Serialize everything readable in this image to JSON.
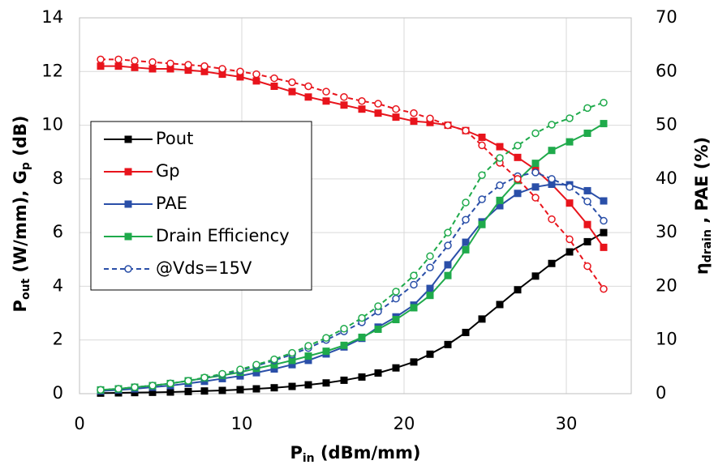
{
  "chart_data": {
    "type": "line",
    "xlabel": [
      "P",
      "in",
      " (dBm/mm)"
    ],
    "ylabel": [
      "P",
      "out",
      " (W/mm), G",
      "p",
      " (dB)"
    ],
    "y2label": [
      "η",
      "drain",
      " , PAE (%)"
    ],
    "x": [
      1.3,
      2.4,
      3.4,
      4.5,
      5.6,
      6.7,
      7.7,
      8.8,
      9.9,
      10.9,
      12.0,
      13.1,
      14.1,
      15.2,
      16.3,
      17.4,
      18.4,
      19.5,
      20.6,
      21.6,
      22.7,
      23.8,
      24.8,
      25.9,
      27.0,
      28.1,
      29.1,
      30.2,
      31.3,
      32.3
    ],
    "xlim": [
      0,
      34
    ],
    "xticks": [
      0,
      10,
      20,
      30
    ],
    "ylim": [
      0,
      14
    ],
    "yticks": [
      0,
      2,
      4,
      6,
      8,
      10,
      12,
      14
    ],
    "y2lim": [
      0,
      70
    ],
    "y2ticks": [
      0,
      10,
      20,
      30,
      40,
      50,
      60,
      70
    ],
    "grid": true,
    "series": [
      {
        "name": "Pout",
        "color": "#000000",
        "marker": "square",
        "dashed": false,
        "values": [
          0.02,
          0.03,
          0.04,
          0.05,
          0.06,
          0.08,
          0.1,
          0.12,
          0.15,
          0.18,
          0.22,
          0.27,
          0.33,
          0.4,
          0.5,
          0.62,
          0.77,
          0.96,
          1.18,
          1.47,
          1.83,
          2.28,
          2.78,
          3.32,
          3.87,
          4.38,
          4.85,
          5.28,
          5.66,
          6.0
        ]
      },
      {
        "name": "Gp",
        "color": "#e8141c",
        "marker": "square",
        "dashed": false,
        "values": [
          12.2,
          12.2,
          12.15,
          12.1,
          12.1,
          12.05,
          12.0,
          11.9,
          11.8,
          11.65,
          11.45,
          11.25,
          11.05,
          10.9,
          10.75,
          10.6,
          10.45,
          10.3,
          10.15,
          10.1,
          10.0,
          9.8,
          9.55,
          9.2,
          8.8,
          8.35,
          7.8,
          7.1,
          6.3,
          5.45
        ]
      },
      {
        "name": "PAE",
        "color": "#2a4fa8",
        "marker": "square",
        "dashed": false,
        "axis": "y2",
        "values": [
          0.5,
          0.7,
          0.9,
          1.2,
          1.5,
          1.9,
          2.3,
          2.8,
          3.3,
          3.9,
          4.6,
          5.4,
          6.2,
          7.4,
          8.7,
          10.3,
          12.4,
          14.3,
          16.5,
          19.6,
          24.0,
          28.2,
          32.0,
          35.0,
          37.3,
          38.5,
          39.0,
          38.9,
          37.8,
          35.9
        ]
      },
      {
        "name": "Drain Efficiency",
        "color": "#1faa4b",
        "marker": "square",
        "dashed": false,
        "axis": "y2",
        "values": [
          0.7,
          0.9,
          1.2,
          1.5,
          1.9,
          2.4,
          2.9,
          3.4,
          4.0,
          4.7,
          5.4,
          6.2,
          7.0,
          7.9,
          9.0,
          10.5,
          12.0,
          13.8,
          16.0,
          18.3,
          22.0,
          26.8,
          31.5,
          36.0,
          39.7,
          42.9,
          45.3,
          46.9,
          48.5,
          50.3
        ]
      },
      {
        "name": "@Vds=15V",
        "color": "#2a4fa8",
        "marker": "circle",
        "dashed": true,
        "axis": "y2",
        "values": [
          0.7,
          0.9,
          1.2,
          1.5,
          1.9,
          2.4,
          2.9,
          3.6,
          4.3,
          5.2,
          6.2,
          7.3,
          8.5,
          10.0,
          11.6,
          13.3,
          15.3,
          17.7,
          20.3,
          23.5,
          27.6,
          32.4,
          36.2,
          38.8,
          40.5,
          41.2,
          40.0,
          38.5,
          35.8,
          32.2
        ]
      },
      {
        "name": null,
        "color": "#e8141c",
        "marker": "circle",
        "dashed": true,
        "values": [
          12.45,
          12.45,
          12.4,
          12.35,
          12.3,
          12.25,
          12.2,
          12.1,
          12.0,
          11.9,
          11.75,
          11.6,
          11.45,
          11.25,
          11.05,
          10.9,
          10.8,
          10.6,
          10.45,
          10.25,
          10.0,
          9.8,
          9.25,
          8.6,
          8.0,
          7.3,
          6.5,
          5.75,
          4.75,
          3.9
        ]
      },
      {
        "name": null,
        "color": "#1faa4b",
        "marker": "circle",
        "dashed": true,
        "axis": "y2",
        "values": [
          0.7,
          0.9,
          1.2,
          1.5,
          1.9,
          2.4,
          3.0,
          3.7,
          4.5,
          5.4,
          6.4,
          7.6,
          8.9,
          10.4,
          12.1,
          14.1,
          16.3,
          19.0,
          22.0,
          25.6,
          30.0,
          35.6,
          40.7,
          43.9,
          46.2,
          48.5,
          50.1,
          51.3,
          53.2,
          54.2
        ]
      }
    ]
  }
}
